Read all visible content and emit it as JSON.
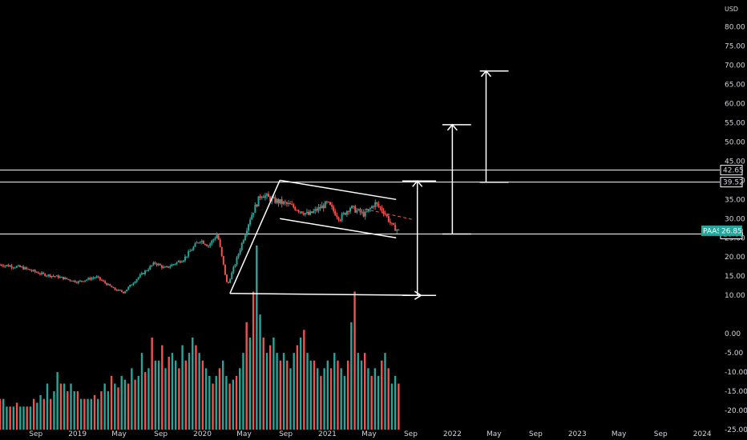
{
  "chart_data": {
    "type": "candlestick",
    "symbol": "PAAS",
    "currency": "USD",
    "last_price": "26.85",
    "colors": {
      "up": "#26a69a",
      "down": "#ef5350",
      "background": "#000000",
      "drawing": "#ffffff",
      "text": "#d1d4dc"
    },
    "y_axis": {
      "ylim": [
        -25,
        87
      ],
      "price_ticks": [
        "10.00",
        "15.00",
        "20.00",
        "25.00",
        "30.00",
        "35.00",
        "40.00",
        "45.00",
        "50.00",
        "55.00",
        "60.00",
        "65.00",
        "70.00",
        "75.00",
        "80.00"
      ],
      "volume_ticks": [
        "0.00",
        "-5.00",
        "-10.00",
        "-15.00",
        "-20.00",
        "-25.00"
      ]
    },
    "x_axis": {
      "ticks": [
        {
          "label": "Sep",
          "x": 2018.667
        },
        {
          "label": "2019",
          "x": 2019.0
        },
        {
          "label": "May",
          "x": 2019.333
        },
        {
          "label": "Sep",
          "x": 2019.667
        },
        {
          "label": "2020",
          "x": 2020.0
        },
        {
          "label": "May",
          "x": 2020.333
        },
        {
          "label": "Sep",
          "x": 2020.667
        },
        {
          "label": "2021",
          "x": 2021.0
        },
        {
          "label": "May",
          "x": 2021.333
        },
        {
          "label": "Sep",
          "x": 2021.667
        },
        {
          "label": "2022",
          "x": 2022.0
        },
        {
          "label": "May",
          "x": 2022.333
        },
        {
          "label": "Sep",
          "x": 2022.667
        },
        {
          "label": "2023",
          "x": 2023.0
        },
        {
          "label": "May",
          "x": 2023.333
        },
        {
          "label": "Sep",
          "x": 2023.667
        },
        {
          "label": "2024",
          "x": 2024.0
        }
      ],
      "xlim": [
        2018.38,
        2024.14
      ]
    },
    "price_anchors": [
      [
        2018.38,
        18.0
      ],
      [
        2018.55,
        17.3
      ],
      [
        2018.72,
        15.5
      ],
      [
        2018.85,
        14.8
      ],
      [
        2019.0,
        13.5
      ],
      [
        2019.15,
        14.8
      ],
      [
        2019.3,
        11.5
      ],
      [
        2019.37,
        10.8
      ],
      [
        2019.48,
        14.5
      ],
      [
        2019.62,
        18.5
      ],
      [
        2019.7,
        17.0
      ],
      [
        2019.85,
        19.5
      ],
      [
        2019.98,
        24.5
      ],
      [
        2020.05,
        23.0
      ],
      [
        2020.12,
        26.0
      ],
      [
        2020.2,
        12.5
      ],
      [
        2020.27,
        19.0
      ],
      [
        2020.38,
        30.0
      ],
      [
        2020.47,
        36.5
      ],
      [
        2020.55,
        35.0
      ],
      [
        2020.7,
        33.5
      ],
      [
        2020.85,
        31.0
      ],
      [
        2021.0,
        34.0
      ],
      [
        2021.1,
        30.0
      ],
      [
        2021.18,
        33.0
      ],
      [
        2021.3,
        31.0
      ],
      [
        2021.38,
        34.0
      ],
      [
        2021.45,
        32.0
      ],
      [
        2021.52,
        28.0
      ],
      [
        2021.57,
        26.85
      ]
    ],
    "volume_values": [
      4,
      4,
      3,
      3,
      3,
      3.5,
      3,
      3,
      3,
      3,
      4,
      3.5,
      4.5,
      4,
      6,
      4,
      5,
      7.5,
      6,
      6,
      5,
      6,
      5,
      5,
      4,
      4,
      4,
      4,
      4.5,
      4,
      5,
      6,
      5,
      7,
      6,
      5.5,
      7,
      6.5,
      6,
      8,
      6.5,
      7,
      10,
      7.5,
      8,
      12,
      9,
      9,
      11,
      8,
      9.5,
      10,
      9,
      8,
      11,
      9,
      10,
      12,
      11,
      10,
      9,
      8,
      7,
      6,
      7,
      8,
      9,
      7,
      6,
      6.5,
      7,
      8,
      10,
      14,
      12,
      18,
      24,
      15,
      12,
      10,
      11,
      12,
      10,
      9,
      10,
      9,
      8,
      10,
      11,
      12,
      13,
      10,
      9,
      9,
      8,
      7,
      8,
      9,
      8,
      10,
      9,
      8,
      7,
      9,
      14,
      18,
      10,
      9,
      10,
      8,
      7,
      8,
      7,
      9,
      10,
      8,
      6,
      7,
      6
    ],
    "horizontal_levels": [
      {
        "price": 42.65,
        "label": "42.65"
      },
      {
        "price": 39.52,
        "label": "39.52"
      },
      {
        "price": 26.0,
        "label": "26.00"
      }
    ],
    "pole": {
      "start": [
        2020.22,
        10.5
      ],
      "end": [
        2020.62,
        40.0
      ],
      "base_end": [
        2021.75,
        10.0
      ]
    },
    "channel": {
      "upper": [
        [
          2020.62,
          40.0
        ],
        [
          2021.55,
          35.0
        ]
      ],
      "lower": [
        [
          2020.62,
          30.0
        ],
        [
          2021.55,
          25.0
        ]
      ]
    },
    "dashed_trend": [
      [
        2021.3,
        32.5
      ],
      [
        2021.68,
        29.8
      ]
    ],
    "arrows": [
      {
        "x": 2021.72,
        "from": 10.0,
        "to": 39.8,
        "cap_left": 2021.6,
        "cap_right": 2021.87
      },
      {
        "x": 2022.0,
        "from": 26.0,
        "to": 54.5,
        "cap_left": 2021.92,
        "cap_right": 2022.15
      },
      {
        "x": 2022.27,
        "from": 39.5,
        "to": 68.5,
        "cap_left": 2022.22,
        "cap_right": 2022.45
      }
    ]
  }
}
